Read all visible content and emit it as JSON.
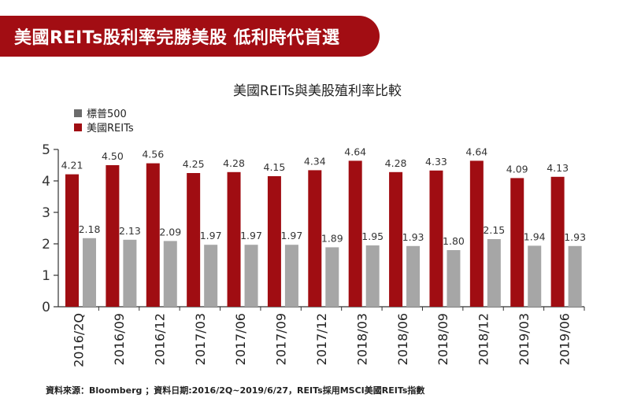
{
  "banner": {
    "title": "美國REITs股利率完勝美股 低利時代首選"
  },
  "footnote": "資料來源：Bloomberg ；資料日期:2016/2Q~2019/6/27，REITs採用MSCI美國REITs指數",
  "colors": {
    "banner": "#a20d13",
    "reits": "#a00d12",
    "sp500": "#a6a6a6",
    "axis": "#333333"
  },
  "chart_data": {
    "type": "bar",
    "title": "美國REITs與美股殖利率比較",
    "xlabel": "",
    "ylabel": "",
    "ylim": [
      0,
      5
    ],
    "yticks": [
      "0",
      "1",
      "2",
      "3",
      "4",
      "5"
    ],
    "legend_position": "top-left",
    "grid": false,
    "categories": [
      "2016/2Q",
      "2016/09",
      "2016/12",
      "2017/03",
      "2017/06",
      "2017/09",
      "2017/12",
      "2018/03",
      "2018/06",
      "2018/09",
      "2018/12",
      "2019/03",
      "2019/06"
    ],
    "series": [
      {
        "name": "美國REITs",
        "color": "#a00d12",
        "values": [
          4.21,
          4.5,
          4.56,
          4.25,
          4.28,
          4.15,
          4.34,
          4.64,
          4.28,
          4.33,
          4.64,
          4.09,
          4.13
        ],
        "labels": [
          "4.21",
          "4.50",
          "4.56",
          "4.25",
          "4.28",
          "4.15",
          "4.34",
          "4.64",
          "4.28",
          "4.33",
          "4.64",
          "4.09",
          "4.13"
        ]
      },
      {
        "name": "標普500",
        "color": "#a6a6a6",
        "values": [
          2.18,
          2.13,
          2.09,
          1.97,
          1.97,
          1.97,
          1.89,
          1.95,
          1.93,
          1.8,
          2.15,
          1.94,
          1.93
        ],
        "labels": [
          "2.18",
          "2.13",
          "2.09",
          "1.97",
          "1.97",
          "1.97",
          "1.89",
          "1.95",
          "1.93",
          "1.80",
          "2.15",
          "1.94",
          "1.93"
        ]
      }
    ],
    "legend_order": [
      {
        "name": "標普500",
        "color": "#6b6b6b"
      },
      {
        "name": "美國REITs",
        "color": "#a00d12"
      }
    ]
  }
}
